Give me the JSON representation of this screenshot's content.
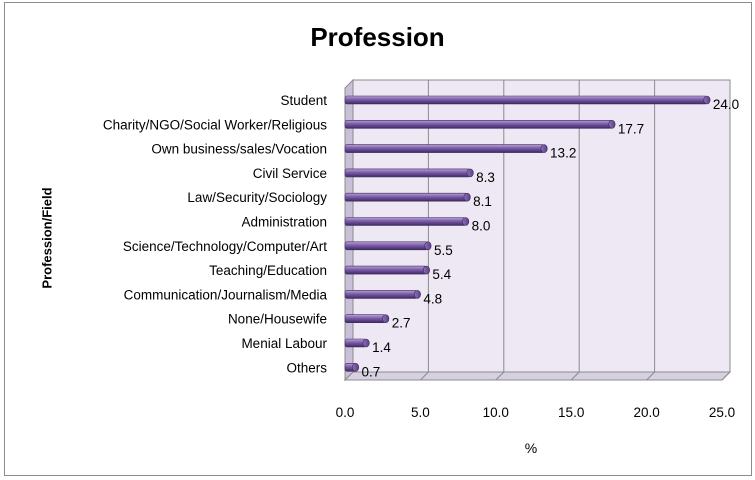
{
  "chart_data": {
    "type": "bar",
    "orientation": "horizontal",
    "title": "Profession",
    "ylabel": "Profession/Field",
    "xlabel": "%",
    "categories": [
      "Student",
      "Charity/NGO/Social Worker/Religious",
      "Own business/sales/Vocation",
      "Civil Service",
      "Law/Security/Sociology",
      "Administration",
      "Science/Technology/Computer/Art",
      "Teaching/Education",
      "Communication/Journalism/Media",
      "None/Housewife",
      "Menial Labour",
      "Others"
    ],
    "values": [
      24.0,
      17.7,
      13.2,
      8.3,
      8.1,
      8.0,
      5.5,
      5.4,
      4.8,
      2.7,
      1.4,
      0.7
    ],
    "data_labels": [
      "24.0",
      "17.7",
      "13.2",
      "8.3",
      "8.1",
      "8.0",
      "5.5",
      "5.4",
      "4.8",
      "2.7",
      "1.4",
      "0.7"
    ],
    "xlim": [
      0,
      25
    ],
    "x_ticks": [
      "0.0",
      "5.0",
      "10.0",
      "15.0",
      "20.0",
      "25.0"
    ],
    "grid": true,
    "style": "3d-cylinder",
    "bar_color": "#7a5ba8",
    "wall_color": "#ede8f3"
  }
}
